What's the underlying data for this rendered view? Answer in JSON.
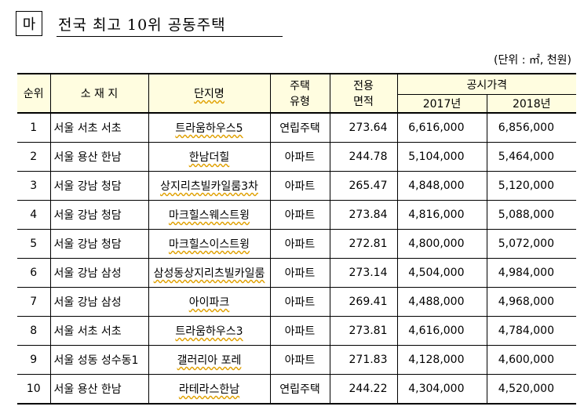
{
  "section": {
    "marker": "마",
    "title": "전국 최고 10위 공동주택"
  },
  "unit_note": "(단위 : ㎡, 천원)",
  "table": {
    "headers": {
      "rank": "순위",
      "location": "소 재 지",
      "complex": "단지명",
      "type_line1": "주택",
      "type_line2": "유형",
      "area_line1": "전용",
      "area_line2": "면적",
      "price_group": "공시가격",
      "year1": "2017년",
      "year2": "2018년"
    },
    "rows": [
      {
        "rank": "1",
        "location": "서울 서초 서초",
        "complex": "트라움하우스5",
        "type": "연립주택",
        "area": "273.64",
        "price2017": "6,616,000",
        "price2018": "6,856,000"
      },
      {
        "rank": "2",
        "location": "서울 용산 한남",
        "complex": "한남더힐",
        "type": "아파트",
        "area": "244.78",
        "price2017": "5,104,000",
        "price2018": "5,464,000"
      },
      {
        "rank": "3",
        "location": "서울 강남 청담",
        "complex": "상지리츠빌카일룸3차",
        "type": "아파트",
        "area": "265.47",
        "price2017": "4,848,000",
        "price2018": "5,120,000"
      },
      {
        "rank": "4",
        "location": "서울 강남 청담",
        "complex": "마크힐스웨스트윙",
        "type": "아파트",
        "area": "273.84",
        "price2017": "4,816,000",
        "price2018": "5,088,000"
      },
      {
        "rank": "5",
        "location": "서울 강남 청담",
        "complex": "마크힐스이스트윙",
        "type": "아파트",
        "area": "272.81",
        "price2017": "4,800,000",
        "price2018": "5,072,000"
      },
      {
        "rank": "6",
        "location": "서울 강남 삼성",
        "complex": "삼성동상지리츠빌카일룸",
        "type": "아파트",
        "area": "273.14",
        "price2017": "4,504,000",
        "price2018": "4,984,000"
      },
      {
        "rank": "7",
        "location": "서울 강남 삼성",
        "complex": "아이파크",
        "type": "아파트",
        "area": "269.41",
        "price2017": "4,488,000",
        "price2018": "4,968,000"
      },
      {
        "rank": "8",
        "location": "서울 서초 서초",
        "complex": "트라움하우스3",
        "type": "아파트",
        "area": "273.81",
        "price2017": "4,616,000",
        "price2018": "4,784,000"
      },
      {
        "rank": "9",
        "location": "서울 성동 성수동1",
        "complex": "갤러리아 포레",
        "type": "아파트",
        "area": "271.83",
        "price2017": "4,128,000",
        "price2018": "4,600,000"
      },
      {
        "rank": "10",
        "location": "서울 용산 한남",
        "complex": "라테라스한남",
        "type": "연립주택",
        "area": "244.22",
        "price2017": "4,304,000",
        "price2018": "4,520,000"
      }
    ]
  }
}
